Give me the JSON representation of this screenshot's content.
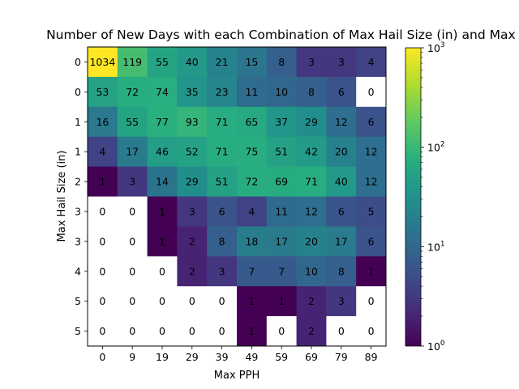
{
  "chart_data": {
    "type": "heatmap",
    "title": "Number of New Days with each Combination of Max Hail Size (in) and Max PPH",
    "xlabel": "Max PPH",
    "ylabel": "Max Hail Size (in)",
    "x_ticks": [
      "0",
      "9",
      "19",
      "29",
      "39",
      "49",
      "59",
      "69",
      "79",
      "89"
    ],
    "y_ticks": [
      "0",
      "0",
      "1",
      "1",
      "2",
      "3",
      "3",
      "4",
      "5",
      "5"
    ],
    "values": [
      [
        1034,
        119,
        55,
        40,
        21,
        15,
        8,
        3,
        3,
        4
      ],
      [
        53,
        72,
        74,
        35,
        23,
        11,
        10,
        8,
        6,
        0
      ],
      [
        16,
        55,
        77,
        93,
        71,
        65,
        37,
        29,
        12,
        6
      ],
      [
        4,
        17,
        46,
        52,
        71,
        75,
        51,
        42,
        20,
        12
      ],
      [
        1,
        3,
        14,
        29,
        51,
        72,
        69,
        71,
        40,
        12
      ],
      [
        0,
        0,
        1,
        3,
        6,
        4,
        11,
        12,
        6,
        5
      ],
      [
        0,
        0,
        1,
        2,
        8,
        18,
        17,
        20,
        17,
        6
      ],
      [
        0,
        0,
        0,
        2,
        3,
        7,
        7,
        10,
        8,
        1
      ],
      [
        0,
        0,
        0,
        0,
        0,
        1,
        1,
        2,
        3,
        0
      ],
      [
        0,
        0,
        0,
        0,
        0,
        1,
        0,
        2,
        0,
        0
      ]
    ],
    "color_scale": "log",
    "colormap": "viridis",
    "zero_cell_color": "#ffffff",
    "colorbar": {
      "range": [
        1,
        1000
      ],
      "tick_labels": [
        {
          "base": "10",
          "exp": "0"
        },
        {
          "base": "10",
          "exp": "1"
        },
        {
          "base": "10",
          "exp": "2"
        },
        {
          "base": "10",
          "exp": "3"
        }
      ]
    }
  }
}
